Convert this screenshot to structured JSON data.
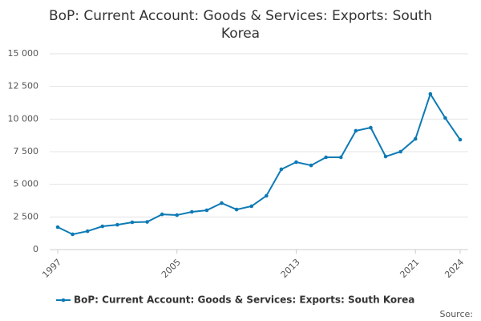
{
  "chart_data": {
    "type": "line",
    "title": "BoP: Current Account: Goods & Services: Exports: South Korea",
    "source": "Source:",
    "x": [
      1997,
      1998,
      1999,
      2000,
      2001,
      2002,
      2003,
      2004,
      2005,
      2006,
      2007,
      2008,
      2009,
      2010,
      2011,
      2012,
      2013,
      2014,
      2015,
      2016,
      2017,
      2018,
      2019,
      2020,
      2021,
      2022,
      2023,
      2024
    ],
    "series": [
      {
        "name": "BoP: Current Account: Goods & Services: Exports: South Korea",
        "color": "#0d7ab5",
        "values": [
          1720,
          1170,
          1410,
          1780,
          1900,
          2090,
          2120,
          2700,
          2640,
          2890,
          3010,
          3560,
          3070,
          3320,
          4120,
          6150,
          6700,
          6450,
          7070,
          7070,
          9100,
          9340,
          7130,
          7500,
          8480,
          11920,
          10080,
          8420
        ]
      }
    ],
    "xlim": [
      1997,
      2024
    ],
    "xticks": [
      1997,
      2005,
      2013,
      2021,
      2024
    ],
    "ylim": [
      0,
      15000
    ],
    "yticks": [
      0,
      {
        "value": 2500,
        "label": "2 500"
      },
      {
        "value": 5000,
        "label": "5 000"
      },
      {
        "value": 7500,
        "label": "7 500"
      },
      {
        "value": 10000,
        "label": "10 000"
      },
      {
        "value": 12500,
        "label": "12 500"
      },
      {
        "value": 15000,
        "label": "15 000"
      }
    ],
    "grid": true
  }
}
